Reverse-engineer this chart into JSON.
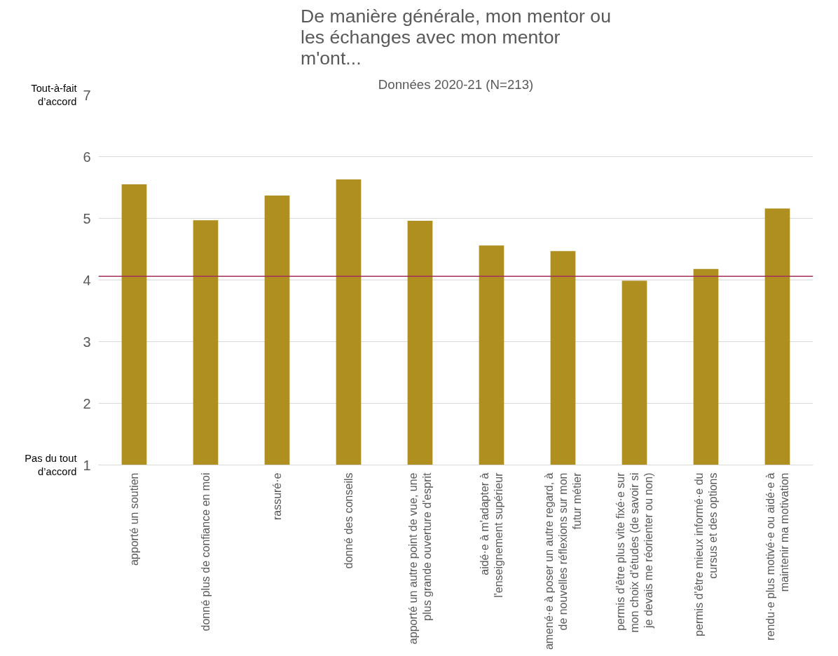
{
  "chart_data": {
    "type": "bar",
    "title": "De manière générale, mon mentor ou les échanges avec mon mentor m'ont...",
    "subtitle": "Données 2020-21 (N=213)",
    "categories": [
      "apporté un soutien",
      "donné plus de confiance en moi",
      "rassuré·e",
      "donné des conseils",
      "apporté un autre point de vue, une plus grande ouverture d'esprit",
      "aidé·e à m'adapter à l'enseignement supérieur",
      "amené·e à poser un autre regard, à de nouvelles réflexions sur mon futur métier",
      "permis d'être plus vite fixé·e sur mon choix d'études (de savoir si je devais me réorienter ou non)",
      "permis d'être mieux informé·e du cursus et des options",
      "rendu·e plus motivé·e ou aidé·e à maintenir ma motivation"
    ],
    "values": [
      5.55,
      4.97,
      5.37,
      5.63,
      4.96,
      4.56,
      4.47,
      3.99,
      4.18,
      5.16
    ],
    "color": "#af8f1f",
    "ylim": [
      1,
      7
    ],
    "yticks": [
      1,
      2,
      3,
      4,
      5,
      6,
      7
    ],
    "grid": "y",
    "ref_lines": [
      {
        "axis": "y",
        "value": 4.06,
        "color": "#a3305c"
      }
    ],
    "annotations": [
      "Tout-à-fait d’accord",
      "Pas du tout d’accord"
    ]
  }
}
